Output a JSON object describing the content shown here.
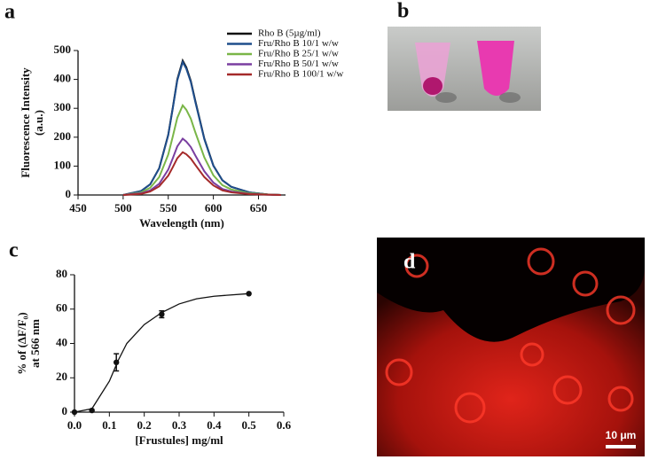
{
  "chart_data": [
    {
      "type": "line",
      "panel_label": "a",
      "x": [
        500,
        520,
        530,
        540,
        550,
        555,
        560,
        566,
        570,
        575,
        580,
        590,
        600,
        610,
        620,
        640,
        660,
        675
      ],
      "series": [
        {
          "name": "Rho B (5µg/ml)",
          "color": "#111111",
          "values": [
            0,
            14,
            37,
            93,
            209,
            302,
            400,
            465,
            442,
            395,
            326,
            195,
            102,
            51,
            28,
            9,
            2,
            0
          ]
        },
        {
          "name": "Fru/Rho B 10/1 w/w",
          "color": "#1f4e8c",
          "values": [
            0,
            14,
            37,
            92,
            207,
            299,
            396,
            460,
            437,
            391,
            322,
            193,
            101,
            51,
            28,
            9,
            2,
            0
          ]
        },
        {
          "name": "Fru/Rho B 25/1 w/w",
          "color": "#7ab648",
          "values": [
            0,
            9,
            25,
            62,
            140,
            202,
            267,
            310,
            295,
            264,
            217,
            130,
            68,
            34,
            19,
            6,
            2,
            0
          ]
        },
        {
          "name": "Fru/Rho B 50/1 w/w",
          "color": "#7a3fa0",
          "values": [
            0,
            6,
            16,
            39,
            88,
            127,
            168,
            195,
            185,
            166,
            137,
            82,
            43,
            21,
            12,
            4,
            1,
            0
          ]
        },
        {
          "name": "Fru/Rho B 100/1 w/w",
          "color": "#a52a2a",
          "values": [
            0,
            4,
            12,
            30,
            67,
            96,
            127,
            148,
            141,
            126,
            104,
            62,
            33,
            16,
            9,
            3,
            1,
            0
          ]
        }
      ],
      "xlim": [
        450,
        680
      ],
      "xticks": [
        450,
        500,
        550,
        600,
        650
      ],
      "ylim": [
        0,
        500
      ],
      "yticks": [
        0,
        100,
        200,
        300,
        400,
        500
      ],
      "xlabel": "Wavelength (nm)",
      "ylabel": [
        "Fluorescence  Intensity",
        "(a.u.)"
      ]
    },
    {
      "type": "scatter",
      "panel_label": "c",
      "color": "#111111",
      "x": [
        0,
        0.05,
        0.12,
        0.25,
        0.5
      ],
      "values": [
        0,
        1,
        29,
        57,
        69
      ],
      "errors": [
        null,
        null,
        5,
        2,
        null
      ],
      "fit": {
        "x": [
          0,
          0.05,
          0.1,
          0.125,
          0.15,
          0.2,
          0.25,
          0.3,
          0.35,
          0.4,
          0.5
        ],
        "values": [
          0,
          2,
          18,
          30,
          40,
          51,
          58,
          63,
          66,
          67.5,
          69
        ]
      },
      "xlim": [
        0,
        0.6
      ],
      "xticks": [
        {
          "value": 0,
          "label": "0.0"
        },
        0.1,
        0.2,
        0.3,
        0.4,
        0.5,
        0.6
      ],
      "ylim": [
        0,
        80
      ],
      "yticks": [
        0,
        20,
        40,
        60,
        80
      ],
      "xlabel": "[Frustules] mg/ml",
      "ylabel": [
        "% of (ΔF/F₀)",
        "at 566 nm"
      ]
    }
  ],
  "panels": [
    {
      "label": "b"
    },
    {
      "label": "d",
      "scale_bar": "10 μm"
    }
  ]
}
